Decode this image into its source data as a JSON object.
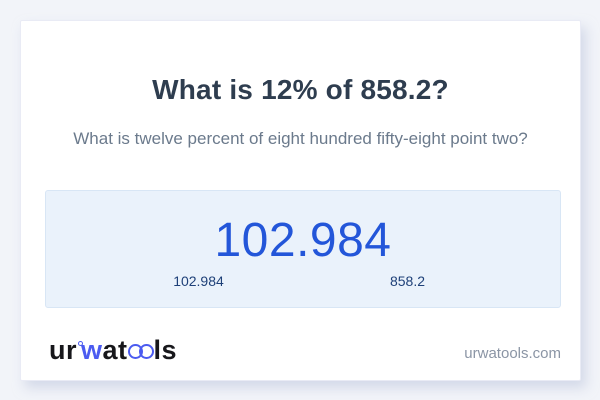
{
  "page": {
    "background": "#f2f4f9"
  },
  "card": {
    "background": "#ffffff",
    "title": "What is 12% of 858.2?",
    "subtitle": "What is twelve percent of eight hundred fifty-eight point two?"
  },
  "answer_panel": {
    "background": "#eaf2fb",
    "result": "102.984",
    "result_color": "#2356d9",
    "sub_values": [
      "102.984",
      "858.2"
    ],
    "sub_value_color": "#1e4078"
  },
  "footer": {
    "logo": {
      "segment_ur": "ur",
      "segment_w": "w",
      "segment_a": "a",
      "segment_t": "t",
      "segment_ls": "ls",
      "accent_color": "#4b5bf0",
      "text_color": "#17171b"
    },
    "domain": "urwatools.com"
  }
}
